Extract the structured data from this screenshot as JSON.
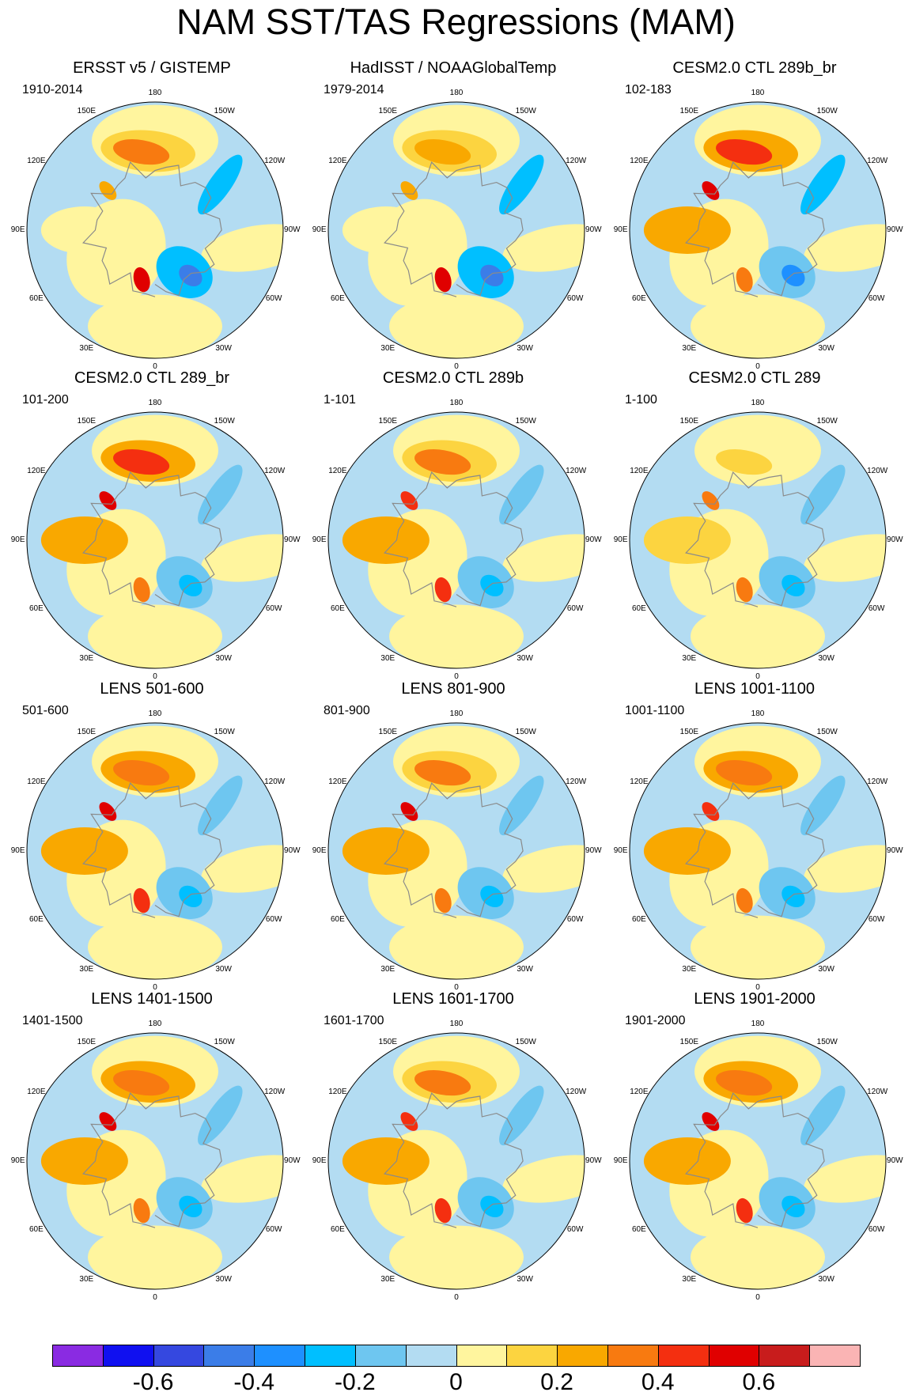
{
  "title": "NAM SST/TAS Regressions (MAM)",
  "longitude_labels": [
    "180",
    "150E",
    "120E",
    "90E",
    "60E",
    "30E",
    "0",
    "30W",
    "60W",
    "90W",
    "120W",
    "150W"
  ],
  "chart_data": {
    "type": "heatmap",
    "projection": "north-polar-stereographic",
    "variable": "NAM regression onto SST/TAS",
    "season": "MAM",
    "panels": [
      {
        "title": "ERSST v5 / GISTEMP",
        "period": "1910-2014",
        "pacific_max": 0.3,
        "atlantic_min": -0.5,
        "greenland_max": 0.5,
        "asia_max": 0.2
      },
      {
        "title": "HadISST / NOAAGlobalTemp",
        "period": "1979-2014",
        "pacific_max": 0.25,
        "atlantic_min": -0.45,
        "greenland_max": 0.5,
        "asia_max": 0.2
      },
      {
        "title": "CESM2.0 CTL 289b_br",
        "period": "102-183",
        "pacific_max": 0.45,
        "atlantic_min": -0.35,
        "greenland_max": 0.3,
        "asia_max": 0.55
      },
      {
        "title": "CESM2.0 CTL 289_br",
        "period": "101-200",
        "pacific_max": 0.45,
        "atlantic_min": -0.3,
        "greenland_max": 0.35,
        "asia_max": 0.55
      },
      {
        "title": "CESM2.0 CTL 289b",
        "period": "1-101",
        "pacific_max": 0.3,
        "atlantic_min": -0.3,
        "greenland_max": 0.45,
        "asia_max": 0.45
      },
      {
        "title": "CESM2.0 CTL 289",
        "period": "1-100",
        "pacific_max": 0.15,
        "atlantic_min": -0.25,
        "greenland_max": 0.35,
        "asia_max": 0.3
      },
      {
        "title": "LENS 501-600",
        "period": "501-600",
        "pacific_max": 0.35,
        "atlantic_min": -0.3,
        "greenland_max": 0.45,
        "asia_max": 0.5
      },
      {
        "title": "LENS 801-900",
        "period": "801-900",
        "pacific_max": 0.3,
        "atlantic_min": -0.3,
        "greenland_max": 0.3,
        "asia_max": 0.55
      },
      {
        "title": "LENS 1001-1100",
        "period": "1001-1100",
        "pacific_max": 0.35,
        "atlantic_min": -0.3,
        "greenland_max": 0.3,
        "asia_max": 0.45
      },
      {
        "title": "LENS 1401-1500",
        "period": "1401-1500",
        "pacific_max": 0.35,
        "atlantic_min": -0.3,
        "greenland_max": 0.35,
        "asia_max": 0.5
      },
      {
        "title": "LENS 1601-1700",
        "period": "1601-1700",
        "pacific_max": 0.3,
        "atlantic_min": -0.3,
        "greenland_max": 0.45,
        "asia_max": 0.45
      },
      {
        "title": "LENS 1901-2000",
        "period": "1901-2000",
        "pacific_max": 0.35,
        "atlantic_min": -0.3,
        "greenland_max": 0.45,
        "asia_max": 0.55
      }
    ],
    "colorbar": {
      "levels": [
        -0.7,
        -0.6,
        -0.5,
        -0.4,
        -0.3,
        -0.2,
        -0.1,
        0,
        0.1,
        0.2,
        0.3,
        0.4,
        0.5,
        0.6,
        0.7
      ],
      "colors": [
        "#8a2be2",
        "#1010f0",
        "#3548e0",
        "#3b7de8",
        "#1e90ff",
        "#00bfff",
        "#6ec6f0",
        "#b3dcf2",
        "#fff59e",
        "#fcd440",
        "#f9a800",
        "#f87a10",
        "#f42f10",
        "#e00000",
        "#c81c1c",
        "#fab4b4"
      ],
      "tick_labels": [
        "-0.6",
        "-0.4",
        "-0.2",
        "0",
        "0.2",
        "0.4",
        "0.6"
      ],
      "tick_values": [
        -0.6,
        -0.4,
        -0.2,
        0,
        0.2,
        0.4,
        0.6
      ]
    }
  }
}
